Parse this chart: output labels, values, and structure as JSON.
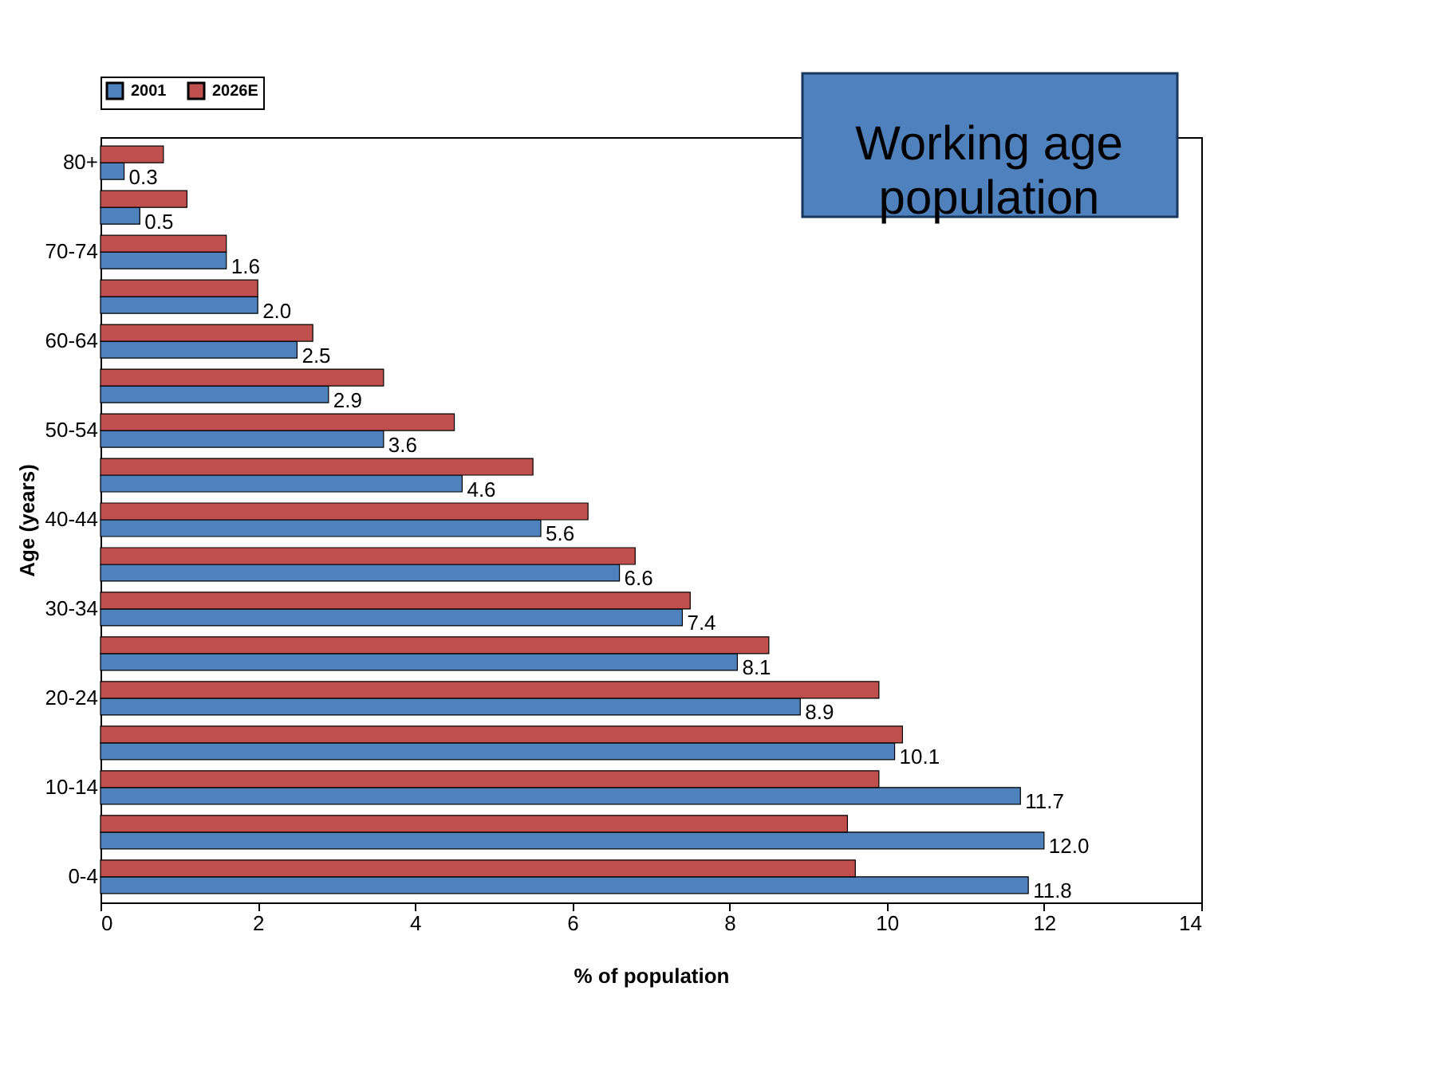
{
  "chart_data": {
    "type": "bar",
    "orientation": "horizontal",
    "xlabel": "% of population",
    "ylabel": "Age (years)",
    "categories": [
      "80+",
      null,
      "70-74",
      null,
      "60-64",
      null,
      "50-54",
      null,
      "40-44",
      null,
      "30-34",
      null,
      "20-24",
      null,
      "10-14",
      null,
      "0-4"
    ],
    "series": [
      {
        "name": "2001",
        "color": "#4f81bd",
        "values": [
          0.3,
          0.5,
          1.6,
          2.0,
          2.5,
          2.9,
          3.6,
          4.6,
          5.6,
          6.6,
          7.4,
          8.1,
          8.9,
          10.1,
          11.7,
          12.0,
          11.8
        ],
        "value_labels": [
          "0.3",
          "0.5",
          "1.6",
          "2.0",
          "2.5",
          "2.9",
          "3.6",
          "4.6",
          "5.6",
          "6.6",
          "7.4",
          "8.1",
          "8.9",
          "10.1",
          "11.7",
          "12.0",
          "11.8"
        ]
      },
      {
        "name": "2026E",
        "color": "#c0504d",
        "values": [
          0.8,
          1.1,
          1.6,
          2.0,
          2.7,
          3.6,
          4.5,
          5.5,
          6.2,
          6.8,
          7.5,
          8.5,
          9.9,
          10.2,
          9.9,
          9.5,
          9.6
        ]
      }
    ],
    "xlim": [
      0,
      14
    ],
    "xticks": [
      0,
      2,
      4,
      6,
      8,
      10,
      12,
      14
    ],
    "grid": false,
    "legend": "top",
    "annotations": [
      "Working age population"
    ]
  }
}
